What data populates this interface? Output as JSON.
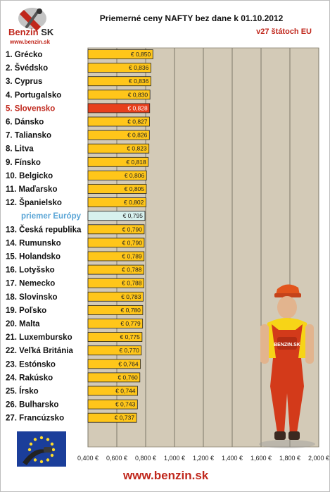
{
  "header": {
    "logo_brand": "Benzin",
    "logo_suffix": "SK",
    "logo_url": "www.benzin.sk",
    "title": "Priemerné ceny NAFTY bez dane k 01.10.2012",
    "subtitle": "v27 štátoch EU"
  },
  "footer": {
    "url": "www.benzin.sk"
  },
  "mascot_badge": "BENZIN.SK",
  "chart_data": {
    "type": "bar",
    "orientation": "horizontal",
    "title": "Priemerné ceny NAFTY bez dane k 01.10.2012",
    "subtitle": "v27 štátoch EU",
    "xlim": [
      0.4,
      2.0
    ],
    "xticks": [
      "0,400 €",
      "0,600 €",
      "0,800 €",
      "1,000 €",
      "1,200 €",
      "1,400 €",
      "1,600 €",
      "1,800 €",
      "2,000 €"
    ],
    "grid": true,
    "categories": [
      "1. Grécko",
      "2. Švédsko",
      "3. Cyprus",
      "4. Portugalsko",
      "5. Slovensko",
      "6. Dánsko",
      "7. Taliansko",
      "8. Litva",
      "9. Fínsko",
      "10. Belgicko",
      "11. Maďarsko",
      "12. Španielsko",
      "priemer Európy",
      "13. Česká republika",
      "14. Rumunsko",
      "15. Holandsko",
      "16. Lotyšsko",
      "17. Nemecko",
      "18. Slovinsko",
      "19. Poľsko",
      "20. Malta",
      "21. Luxembursko",
      "22. Veľká Británia",
      "23. Estónsko",
      "24. Rakúsko",
      "25. Írsko",
      "26. Bulharsko",
      "27. Francúzsko"
    ],
    "values": [
      0.85,
      0.836,
      0.836,
      0.83,
      0.828,
      0.827,
      0.826,
      0.823,
      0.818,
      0.806,
      0.805,
      0.802,
      0.795,
      0.79,
      0.79,
      0.789,
      0.788,
      0.788,
      0.783,
      0.78,
      0.779,
      0.775,
      0.77,
      0.764,
      0.76,
      0.744,
      0.743,
      0.737
    ],
    "value_labels": [
      "€ 0,850",
      "€ 0,836",
      "€ 0,836",
      "€ 0,830",
      "€ 0,828",
      "€ 0,827",
      "€ 0,826",
      "€ 0,823",
      "€ 0,818",
      "€ 0,806",
      "€ 0,805",
      "€ 0,802",
      "€ 0,795",
      "€ 0,790",
      "€ 0,790",
      "€ 0,789",
      "€ 0,788",
      "€ 0,788",
      "€ 0,783",
      "€ 0,780",
      "€ 0,779",
      "€ 0,775",
      "€ 0,770",
      "€ 0,764",
      "€ 0,760",
      "€ 0,744",
      "€ 0,743",
      "€ 0,737"
    ],
    "highlight": {
      "Slovensko": "#e8401c",
      "priemer Európy": "#d7f1ee"
    },
    "colors": {
      "bar": "#ffc61a",
      "plot_bg": "#d3cab7",
      "highlight_label": "#c0271c",
      "average_label": "#5aa5d6"
    }
  }
}
